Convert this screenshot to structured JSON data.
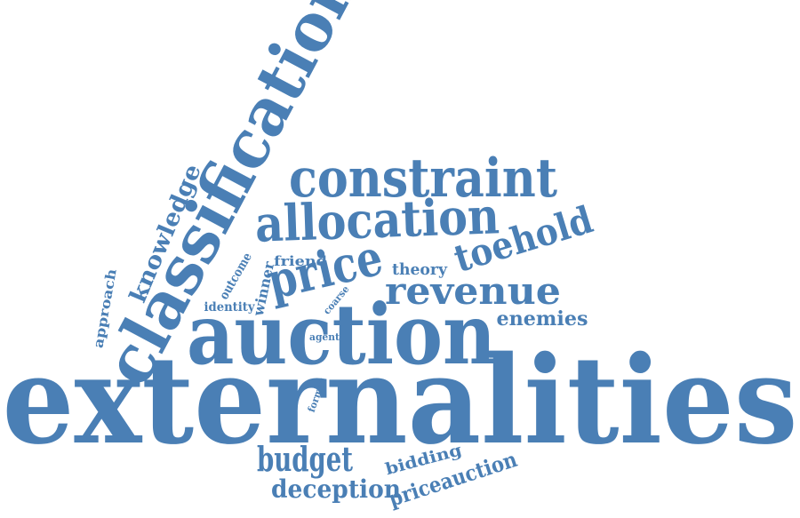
{
  "color": "#4a7fb5",
  "words": [
    {
      "key": "externalities",
      "text": "externalities"
    },
    {
      "key": "classification",
      "text": "classification"
    },
    {
      "key": "auction",
      "text": "auction"
    },
    {
      "key": "constraint",
      "text": "constraint"
    },
    {
      "key": "allocation",
      "text": "allocation"
    },
    {
      "key": "price",
      "text": "price"
    },
    {
      "key": "revenue",
      "text": "revenue"
    },
    {
      "key": "toehold",
      "text": "toehold"
    },
    {
      "key": "knowledge",
      "text": "knowledge"
    },
    {
      "key": "budget",
      "text": "budget"
    },
    {
      "key": "deception",
      "text": "deception"
    },
    {
      "key": "priceauction",
      "text": "priceauction"
    },
    {
      "key": "enemies",
      "text": "enemies"
    },
    {
      "key": "bidding",
      "text": "bidding"
    },
    {
      "key": "approach",
      "text": "approach"
    },
    {
      "key": "outcome",
      "text": "outcome"
    },
    {
      "key": "winner",
      "text": "winner"
    },
    {
      "key": "friend",
      "text": "friend"
    },
    {
      "key": "theory",
      "text": "theory"
    },
    {
      "key": "identity",
      "text": "identity"
    },
    {
      "key": "coarse",
      "text": "coarse"
    },
    {
      "key": "agent",
      "text": "agent"
    },
    {
      "key": "format",
      "text": "format"
    }
  ]
}
